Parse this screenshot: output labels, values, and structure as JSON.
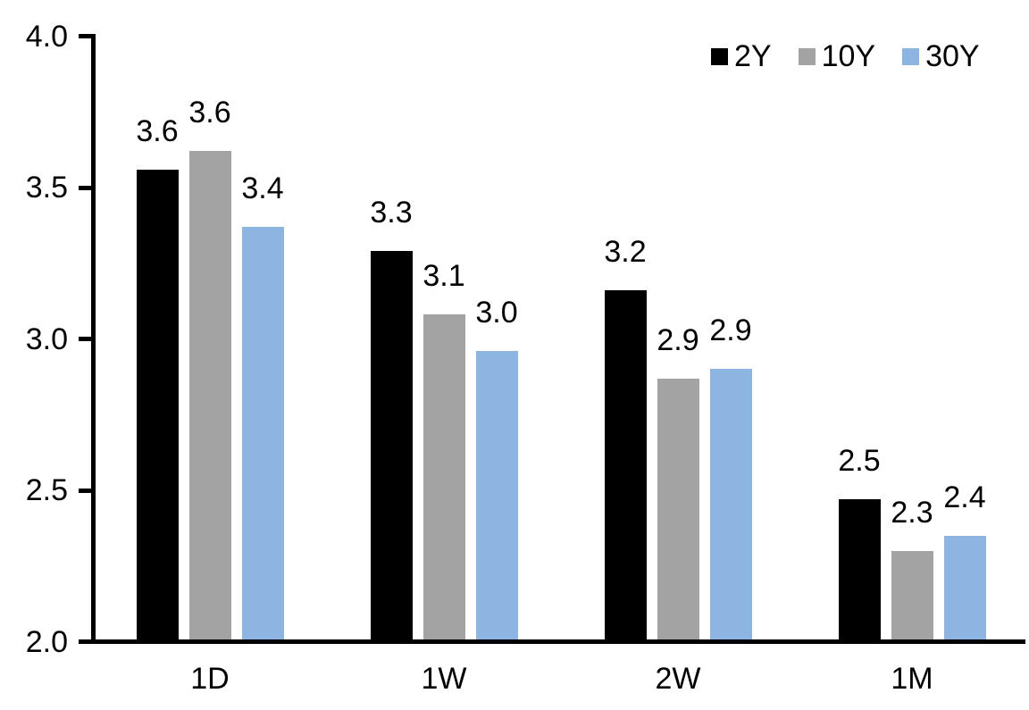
{
  "chart_data": {
    "type": "bar",
    "title": "",
    "xlabel": "",
    "ylabel": "",
    "categories": [
      "1D",
      "1W",
      "2W",
      "1M"
    ],
    "series": [
      {
        "name": "2Y",
        "color": "#000000",
        "values": [
          3.56,
          3.29,
          3.16,
          2.47
        ],
        "labels": [
          "3.6",
          "3.3",
          "3.2",
          "2.5"
        ]
      },
      {
        "name": "10Y",
        "color": "#A3A3A3",
        "values": [
          3.62,
          3.08,
          2.87,
          2.3
        ],
        "labels": [
          "3.6",
          "3.1",
          "2.9",
          "2.3"
        ]
      },
      {
        "name": "30Y",
        "color": "#8EB4E2",
        "values": [
          3.37,
          2.96,
          2.9,
          2.35
        ],
        "labels": [
          "3.4",
          "3.0",
          "2.9",
          "2.4"
        ]
      }
    ],
    "y_axis": {
      "min": 2.0,
      "max": 4.0,
      "step": 0.5,
      "tick_labels": [
        "4.0",
        "3.5",
        "3.0",
        "2.5",
        "2.0"
      ]
    },
    "legend": {
      "position": "top-right"
    },
    "grid": false,
    "axis_color": "#000000"
  }
}
